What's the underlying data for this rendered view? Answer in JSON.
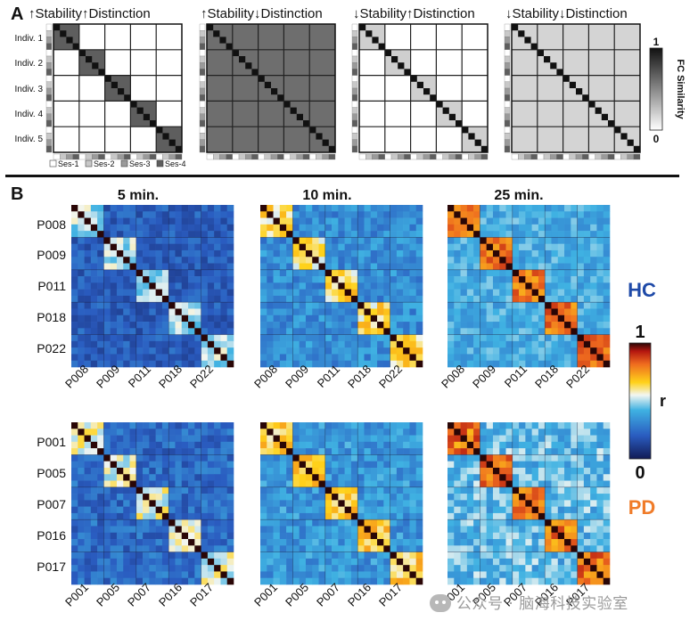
{
  "panelA": {
    "label": "A",
    "titles": [
      "↑Stability↑Distinction",
      "↑Stability↓Distinction",
      "↓Stability↑Distinction",
      "↓Stability↓Distinction"
    ],
    "row_labels": [
      "Indiv. 1",
      "Indiv. 2",
      "Indiv. 3",
      "Indiv. 4",
      "Indiv. 5"
    ],
    "session_legend": [
      "Ses-1",
      "Ses-2",
      "Ses-3",
      "Ses-4"
    ],
    "session_colors": [
      "#ffffff",
      "#c8c8c8",
      "#9a9a9a",
      "#5e5e5e"
    ],
    "colorbar": {
      "label": "FC Similarity",
      "max": "1",
      "min": "0"
    }
  },
  "panelB": {
    "label": "B",
    "duration_titles": [
      "5 min.",
      "10 min.",
      "25 min."
    ],
    "groups": [
      {
        "name": "HC",
        "color": "#1f4aa8",
        "subjects": [
          "P008",
          "P009",
          "P011",
          "P018",
          "P022"
        ]
      },
      {
        "name": "PD",
        "color": "#f07c2a",
        "subjects": [
          "P001",
          "P005",
          "P007",
          "P016",
          "P017"
        ]
      }
    ],
    "colorbar": {
      "label": "r",
      "max": "1",
      "min": "0"
    }
  },
  "watermark": "公众号 · 脑海科技实验室"
}
